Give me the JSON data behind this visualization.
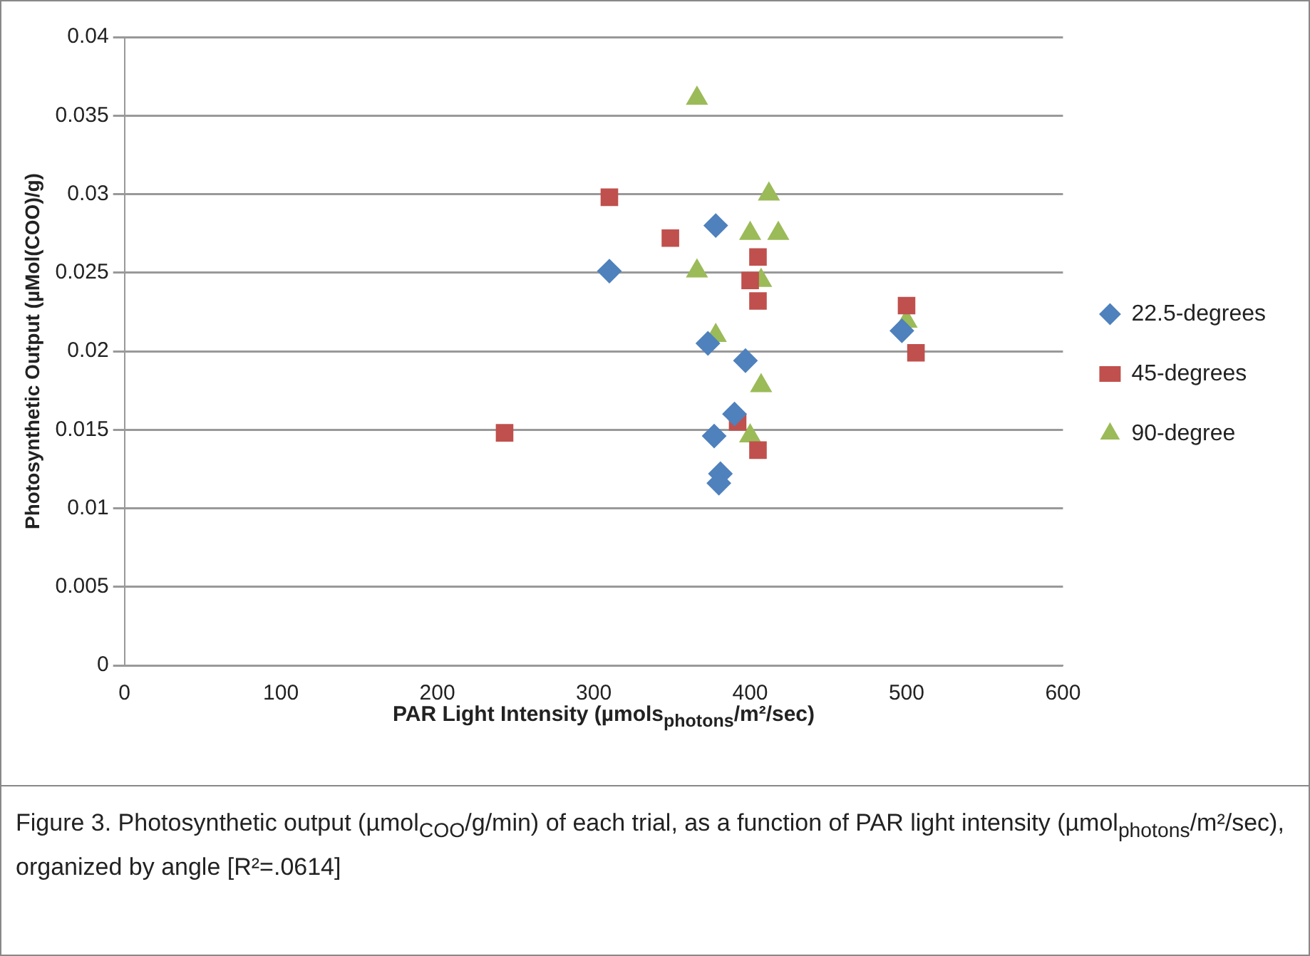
{
  "chart_data": {
    "type": "scatter",
    "xlabel": "PAR Light Intensity (µmols$_{photons}$/m²/sec)",
    "ylabel": "Photosynthetic Output (µMol(COO)/g)",
    "xlim": [
      0,
      600
    ],
    "xticks": [
      0,
      100,
      200,
      300,
      400,
      500,
      600
    ],
    "ylim": [
      0,
      0.04
    ],
    "yticks": [
      0,
      0.005,
      0.01,
      0.015,
      0.02,
      0.025,
      0.03,
      0.035,
      0.04
    ],
    "grid": "y",
    "legend": "right",
    "series": [
      {
        "name": "22.5-degrees",
        "color": "#4f81bd",
        "marker": "diamond",
        "x": [
          310,
          378,
          373,
          397,
          377,
          381,
          380,
          390,
          497
        ],
        "values": [
          0.0251,
          0.028,
          0.0205,
          0.0194,
          0.0146,
          0.0122,
          0.0116,
          0.016,
          0.0213
        ]
      },
      {
        "name": "45-degrees",
        "color": "#c0504d",
        "marker": "square",
        "x": [
          310,
          349,
          243,
          405,
          400,
          405,
          392,
          405,
          500,
          506
        ],
        "values": [
          0.0298,
          0.0272,
          0.0148,
          0.026,
          0.0245,
          0.0232,
          0.0155,
          0.0137,
          0.0229,
          0.0199
        ]
      },
      {
        "name": "90-degree",
        "color": "#9bbb59",
        "marker": "triangle",
        "x": [
          366,
          412,
          400,
          418,
          366,
          407,
          378,
          407,
          400,
          500
        ],
        "values": [
          0.0361,
          0.03,
          0.0275,
          0.0275,
          0.0251,
          0.0245,
          0.021,
          0.0178,
          0.0146,
          0.0219
        ]
      }
    ],
    "annotations": [
      "Figure 3. Photosynthetic output (µmol$_{COO}$/g/min) of each trial, as a function of PAR light intensity (µmol$_{photons}$/m²/sec),  organized by angle [R²=.0614]"
    ]
  }
}
